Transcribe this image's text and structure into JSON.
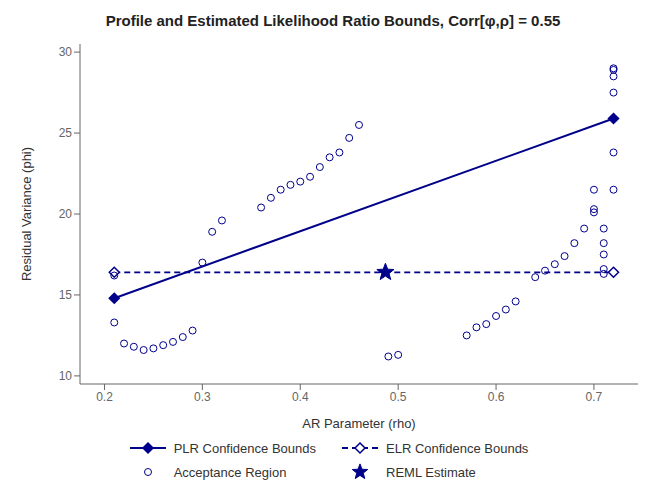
{
  "chart_data": {
    "type": "scatter",
    "title": "Profile and Estimated Likelihood Ratio Bounds, Corr[φ,ρ] = 0.55",
    "xlabel": "AR Parameter (rho)",
    "ylabel": "Residual Variance (phi)",
    "xlim": [
      0.175,
      0.745
    ],
    "ylim": [
      9.5,
      30.5
    ],
    "xticks": [
      0.2,
      0.3,
      0.4,
      0.5,
      0.6,
      0.7
    ],
    "yticks": [
      10,
      15,
      20,
      25,
      30
    ],
    "legend": "bottom",
    "series": [
      {
        "name": "PLR Confidence Bounds",
        "type": "line",
        "color": "#00008B",
        "line_style": "solid",
        "marker": "diamond",
        "x": [
          0.21,
          0.72
        ],
        "values": [
          14.8,
          25.9
        ]
      },
      {
        "name": "ELR Confidence Bounds",
        "type": "line",
        "color": "#00008B",
        "line_style": "dashed",
        "marker": "diamond_open",
        "x": [
          0.21,
          0.72
        ],
        "values": [
          16.4,
          16.4
        ]
      },
      {
        "name": "Acceptance Region",
        "type": "scatter",
        "color": "#00008B",
        "marker": "circle_open",
        "x": [
          0.21,
          0.21,
          0.22,
          0.23,
          0.24,
          0.25,
          0.26,
          0.27,
          0.28,
          0.29,
          0.3,
          0.31,
          0.32,
          0.36,
          0.37,
          0.38,
          0.39,
          0.4,
          0.41,
          0.42,
          0.43,
          0.44,
          0.45,
          0.46,
          0.49,
          0.5,
          0.57,
          0.58,
          0.59,
          0.6,
          0.61,
          0.62,
          0.64,
          0.65,
          0.66,
          0.67,
          0.68,
          0.69,
          0.7,
          0.7,
          0.7,
          0.71,
          0.71,
          0.71,
          0.71,
          0.71,
          0.72,
          0.72,
          0.72,
          0.72,
          0.72,
          0.72
        ],
        "values": [
          16.2,
          13.3,
          12.0,
          11.8,
          11.6,
          11.7,
          11.9,
          12.1,
          12.4,
          12.8,
          17.0,
          18.9,
          19.6,
          20.4,
          21.0,
          21.5,
          21.8,
          22.0,
          22.3,
          22.9,
          23.5,
          23.8,
          24.7,
          25.5,
          11.2,
          11.3,
          12.5,
          13.0,
          13.2,
          13.7,
          14.1,
          14.6,
          16.1,
          16.5,
          16.9,
          17.4,
          18.2,
          19.1,
          20.1,
          20.3,
          21.5,
          16.3,
          16.6,
          17.5,
          18.2,
          19.1,
          21.5,
          23.8,
          27.5,
          28.5,
          28.9,
          29.0
        ]
      },
      {
        "name": "REML Estimate",
        "type": "scatter",
        "color": "#00008B",
        "marker": "star",
        "x": [
          0.487
        ],
        "values": [
          16.4
        ]
      }
    ]
  }
}
